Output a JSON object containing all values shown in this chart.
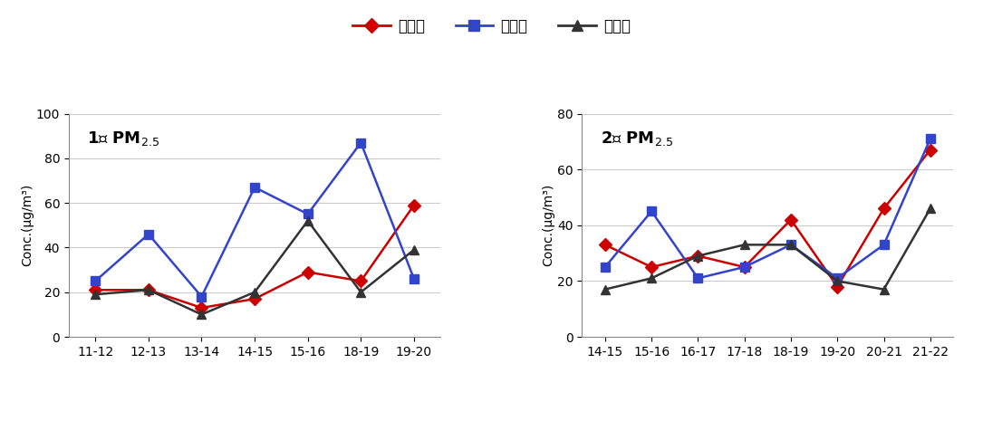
{
  "plot1": {
    "title_prefix": "1",
    "title_suffix": " PM",
    "x_labels": [
      "11-12",
      "12-13",
      "13-14",
      "14-15",
      "15-16",
      "18-19",
      "19-20"
    ],
    "bongmyeong": [
      21,
      21,
      13,
      17,
      29,
      25,
      59
    ],
    "bokdae": [
      25,
      46,
      18,
      67,
      55,
      87,
      26
    ],
    "seoun": [
      19,
      21,
      10,
      20,
      52,
      20,
      39
    ],
    "ylim": [
      0,
      100
    ],
    "yticks": [
      0,
      20,
      40,
      60,
      80,
      100
    ]
  },
  "plot2": {
    "title_prefix": "2",
    "title_suffix": " PM",
    "x_labels": [
      "14-15",
      "15-16",
      "16-17",
      "17-18",
      "18-19",
      "19-20",
      "20-21",
      "21-22"
    ],
    "bongmyeong": [
      33,
      25,
      29,
      25,
      42,
      18,
      46,
      67
    ],
    "bokdae": [
      25,
      45,
      21,
      25,
      33,
      21,
      33,
      71
    ],
    "seoun": [
      17,
      21,
      29,
      33,
      33,
      20,
      17,
      46
    ],
    "ylim": [
      0,
      80
    ],
    "yticks": [
      0,
      20,
      40,
      60,
      80
    ]
  },
  "colors": {
    "bongmyeong": "#CC0000",
    "bokdae": "#3344CC",
    "seoun": "#669900"
  },
  "legend_labels": [
    "봉명동",
    "복대동",
    "서운동"
  ],
  "ylabel": "Conc.(μg/m³)",
  "cha": "차",
  "title_fontsize": 13,
  "legend_fontsize": 12,
  "tick_fontsize": 10,
  "ylabel_fontsize": 10
}
